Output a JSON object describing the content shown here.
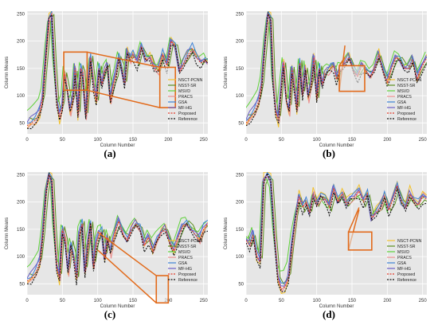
{
  "figure": {
    "panel_labels": [
      "(a)",
      "(b)",
      "(c)",
      "(d)"
    ]
  },
  "chart_data": [
    {
      "panel": "(a)",
      "type": "line",
      "xlabel": "Column Number",
      "ylabel": "Column Means",
      "xlim": [
        0,
        256
      ],
      "ylim": [
        30,
        255
      ],
      "xticks": [
        0,
        50,
        100,
        150,
        200,
        250
      ],
      "yticks": [
        50,
        100,
        150,
        200,
        250
      ],
      "legend_position": "right",
      "grid": true,
      "zoom_insets": 2,
      "series": [
        {
          "name": "NSCT-PCNN",
          "color": "#f2c12e",
          "style": "solid"
        },
        {
          "name": "NSST-SR",
          "color": "#5b8f1e",
          "style": "solid"
        },
        {
          "name": "MSVD",
          "color": "#5fd13a",
          "style": "solid"
        },
        {
          "name": "PRACS",
          "color": "#e98b8b",
          "style": "solid"
        },
        {
          "name": "GSA",
          "color": "#3d82d6",
          "style": "solid"
        },
        {
          "name": "MF-HG",
          "color": "#6b5fc7",
          "style": "solid"
        },
        {
          "name": "Proposed",
          "color": "#e23b2a",
          "style": "dashed"
        },
        {
          "name": "Reference",
          "color": "#111111",
          "style": "dashed"
        }
      ],
      "base": {
        "x": [
          0,
          6,
          12,
          18,
          22,
          27,
          31,
          35,
          38,
          42,
          46,
          50,
          53,
          57,
          61,
          65,
          68,
          72,
          76,
          79,
          83,
          86,
          90,
          94,
          98,
          102,
          106,
          110,
          114,
          118,
          122,
          126,
          130,
          134,
          138,
          142,
          146,
          150,
          156,
          162,
          168,
          174,
          180,
          186,
          192,
          198,
          204,
          210,
          216,
          222,
          228,
          234,
          240,
          246,
          252,
          256
        ],
        "y": [
          45,
          50,
          55,
          70,
          95,
          180,
          240,
          250,
          170,
          90,
          60,
          80,
          140,
          110,
          70,
          95,
          150,
          65,
          150,
          140,
          60,
          110,
          170,
          120,
          90,
          150,
          120,
          145,
          155,
          90,
          120,
          140,
          170,
          150,
          120,
          180,
          165,
          175,
          160,
          190,
          165,
          170,
          150,
          145,
          175,
          155,
          200,
          190,
          145,
          160,
          175,
          185,
          170,
          160,
          165,
          160
        ]
      }
    },
    {
      "panel": "(b)",
      "type": "line",
      "xlabel": "Column Number",
      "ylabel": "Column Means",
      "xlim": [
        0,
        256
      ],
      "ylim": [
        30,
        255
      ],
      "xticks": [
        0,
        50,
        100,
        150,
        200,
        250
      ],
      "yticks": [
        50,
        100,
        150,
        200,
        250
      ],
      "legend_position": "right",
      "grid": true,
      "zoom_insets": 2,
      "series": [
        {
          "name": "NSCT-PCNN",
          "color": "#f2c12e",
          "style": "solid"
        },
        {
          "name": "NSST-SR",
          "color": "#5b8f1e",
          "style": "solid"
        },
        {
          "name": "MSVD",
          "color": "#5fd13a",
          "style": "solid"
        },
        {
          "name": "PRACS",
          "color": "#e98b8b",
          "style": "solid"
        },
        {
          "name": "GSA",
          "color": "#3d82d6",
          "style": "solid"
        },
        {
          "name": "MF-HG",
          "color": "#6b5fc7",
          "style": "solid"
        },
        {
          "name": "Proposed",
          "color": "#e23b2a",
          "style": "dashed"
        },
        {
          "name": "Reference",
          "color": "#111111",
          "style": "dashed"
        }
      ],
      "base": {
        "x": [
          0,
          6,
          12,
          18,
          22,
          27,
          31,
          35,
          38,
          42,
          46,
          50,
          53,
          57,
          61,
          65,
          68,
          72,
          76,
          80,
          84,
          88,
          92,
          96,
          100,
          104,
          108,
          112,
          116,
          120,
          124,
          128,
          132,
          136,
          140,
          146,
          152,
          158,
          164,
          170,
          176,
          182,
          188,
          194,
          200,
          206,
          212,
          218,
          224,
          230,
          236,
          242,
          248,
          256
        ],
        "y": [
          50,
          60,
          70,
          90,
          120,
          200,
          250,
          240,
          130,
          70,
          55,
          120,
          160,
          90,
          70,
          150,
          120,
          75,
          160,
          100,
          150,
          95,
          120,
          170,
          95,
          150,
          120,
          140,
          145,
          150,
          155,
          130,
          145,
          150,
          160,
          170,
          145,
          135,
          155,
          145,
          135,
          150,
          175,
          145,
          125,
          150,
          170,
          165,
          150,
          150,
          165,
          130,
          150,
          170
        ]
      }
    },
    {
      "panel": "(c)",
      "type": "line",
      "xlabel": "Column Number",
      "ylabel": "Column Means",
      "xlim": [
        0,
        256
      ],
      "ylim": [
        30,
        255
      ],
      "xticks": [
        0,
        50,
        100,
        150,
        200,
        250
      ],
      "yticks": [
        50,
        100,
        150,
        200,
        250
      ],
      "legend_position": "right",
      "grid": true,
      "zoom_insets": 2,
      "series": [
        {
          "name": "NSCT-PCNN",
          "color": "#f2c12e",
          "style": "solid"
        },
        {
          "name": "NSST-SR",
          "color": "#5b8f1e",
          "style": "solid"
        },
        {
          "name": "MSVD",
          "color": "#5fd13a",
          "style": "solid"
        },
        {
          "name": "PRACS",
          "color": "#e98b8b",
          "style": "solid"
        },
        {
          "name": "GSA",
          "color": "#3d82d6",
          "style": "solid"
        },
        {
          "name": "MF-HG",
          "color": "#6b5fc7",
          "style": "solid"
        },
        {
          "name": "Proposed",
          "color": "#e23b2a",
          "style": "dashed"
        },
        {
          "name": "Reference",
          "color": "#111111",
          "style": "dashed"
        }
      ],
      "base": {
        "x": [
          0,
          6,
          12,
          18,
          22,
          27,
          31,
          35,
          38,
          42,
          46,
          50,
          54,
          58,
          62,
          66,
          70,
          74,
          78,
          82,
          86,
          90,
          94,
          98,
          102,
          106,
          110,
          114,
          118,
          122,
          126,
          130,
          136,
          142,
          148,
          154,
          160,
          166,
          172,
          178,
          184,
          190,
          196,
          202,
          208,
          214,
          220,
          226,
          232,
          238,
          244,
          250,
          256
        ],
        "y": [
          55,
          60,
          70,
          90,
          140,
          220,
          250,
          240,
          160,
          80,
          60,
          150,
          130,
          70,
          120,
          100,
          60,
          140,
          160,
          70,
          120,
          160,
          80,
          125,
          140,
          145,
          95,
          135,
          105,
          130,
          150,
          165,
          140,
          130,
          150,
          160,
          150,
          120,
          135,
          110,
          130,
          145,
          150,
          125,
          110,
          135,
          155,
          160,
          150,
          140,
          130,
          150,
          160
        ]
      }
    },
    {
      "panel": "(d)",
      "type": "line",
      "xlabel": "Column Number",
      "ylabel": "Column Means",
      "xlim": [
        0,
        256
      ],
      "ylim": [
        30,
        255
      ],
      "xticks": [
        0,
        50,
        100,
        150,
        200,
        250
      ],
      "yticks": [
        50,
        100,
        150,
        200,
        250
      ],
      "legend_position": "right",
      "grid": true,
      "zoom_insets": 2,
      "series": [
        {
          "name": "NSCT-PCNN",
          "color": "#f2c12e",
          "style": "solid"
        },
        {
          "name": "NSST-SR",
          "color": "#5b8f1e",
          "style": "solid"
        },
        {
          "name": "MSVD",
          "color": "#5fd13a",
          "style": "solid"
        },
        {
          "name": "PRACS",
          "color": "#e98b8b",
          "style": "solid"
        },
        {
          "name": "GSA",
          "color": "#3d82d6",
          "style": "solid"
        },
        {
          "name": "MF-HG",
          "color": "#6b5fc7",
          "style": "solid"
        },
        {
          "name": "Proposed",
          "color": "#e23b2a",
          "style": "dashed"
        },
        {
          "name": "Reference",
          "color": "#111111",
          "style": "dashed"
        }
      ],
      "base": {
        "x": [
          0,
          5,
          10,
          15,
          20,
          25,
          30,
          35,
          40,
          45,
          50,
          55,
          60,
          65,
          70,
          75,
          80,
          85,
          90,
          95,
          100,
          106,
          112,
          118,
          124,
          130,
          136,
          142,
          148,
          154,
          160,
          166,
          172,
          178,
          184,
          190,
          196,
          202,
          208,
          214,
          220,
          226,
          232,
          238,
          244,
          250,
          256
        ],
        "y": [
          130,
          120,
          140,
          100,
          90,
          240,
          250,
          240,
          140,
          60,
          40,
          45,
          60,
          120,
          170,
          210,
          190,
          200,
          180,
          215,
          195,
          210,
          205,
          190,
          225,
          200,
          215,
          195,
          205,
          210,
          220,
          200,
          215,
          170,
          180,
          190,
          210,
          185,
          205,
          230,
          200,
          190,
          215,
          200,
          195,
          210,
          205
        ]
      }
    }
  ]
}
